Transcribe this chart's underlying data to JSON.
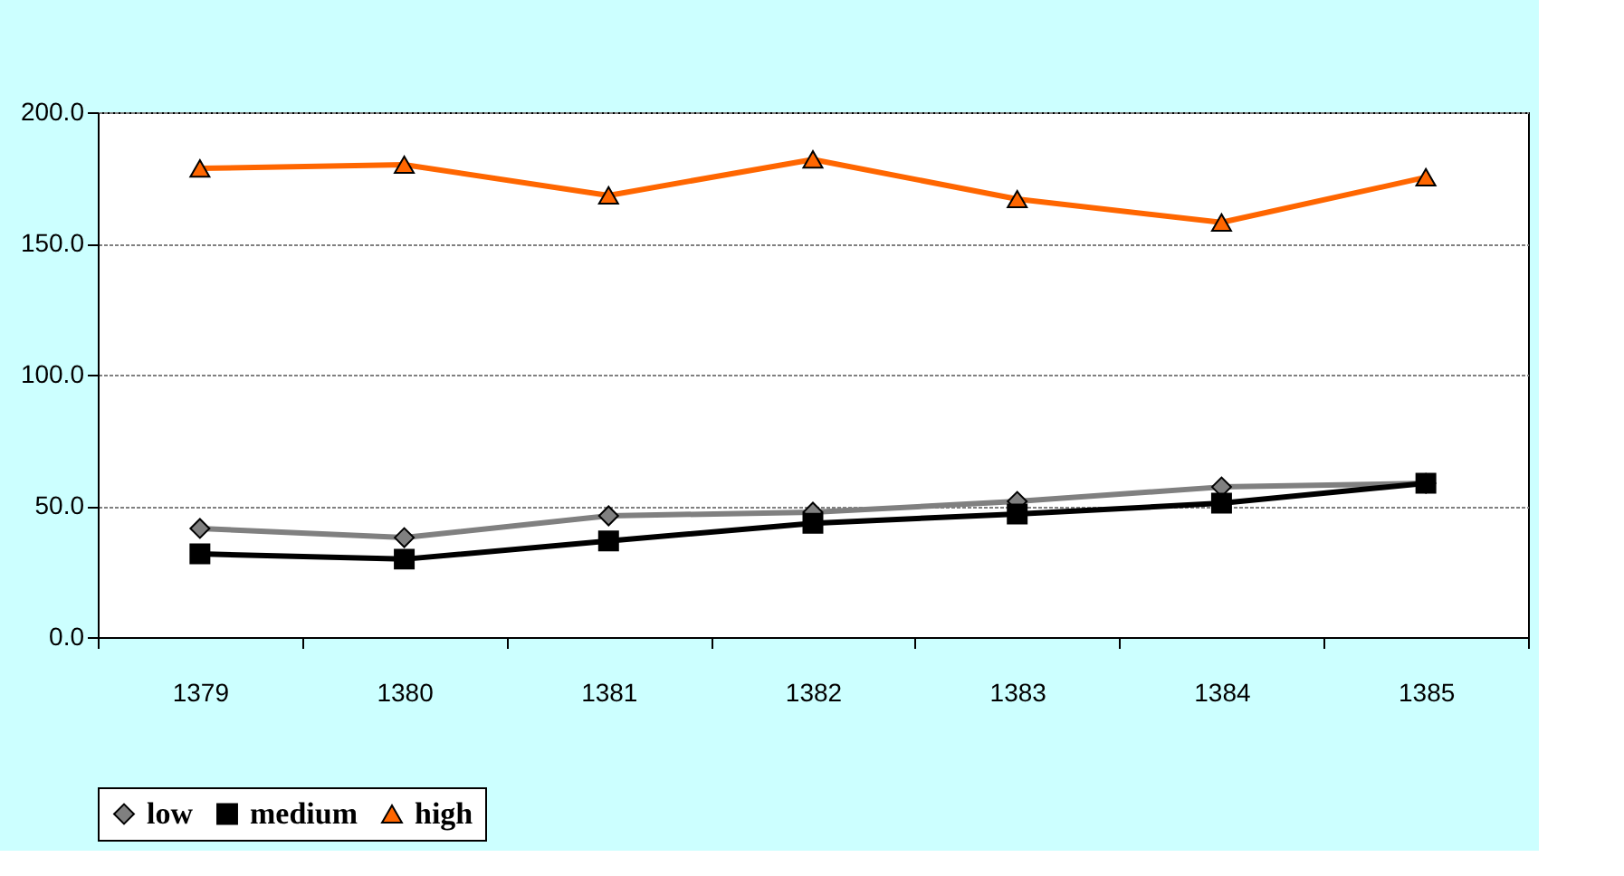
{
  "chart_data": {
    "type": "line",
    "categories": [
      "1379",
      "1380",
      "1381",
      "1382",
      "1383",
      "1384",
      "1385"
    ],
    "series": [
      {
        "name": "low",
        "color": "#808080",
        "marker": "diamond",
        "values": [
          41.4,
          37.9,
          46.2,
          47.6,
          51.7,
          57.2,
          58.6
        ]
      },
      {
        "name": "medium",
        "color": "#000000",
        "marker": "square",
        "values": [
          31.7,
          29.7,
          36.6,
          43.4,
          46.9,
          51.0,
          58.6
        ]
      },
      {
        "name": "high",
        "color": "#ff6600",
        "marker": "triangle",
        "values": [
          178.6,
          180.0,
          168.3,
          182.0,
          166.9,
          158.0,
          175.2
        ]
      }
    ],
    "ylim": [
      0,
      200
    ],
    "yticks": [
      {
        "value": 0,
        "label": "0.0"
      },
      {
        "value": 50,
        "label": "50.0"
      },
      {
        "value": 100,
        "label": "100.0"
      },
      {
        "value": 150,
        "label": "150.0"
      },
      {
        "value": 200,
        "label": "200.0"
      }
    ],
    "grid": "y",
    "legend": "bottom",
    "line_style": "solid"
  }
}
